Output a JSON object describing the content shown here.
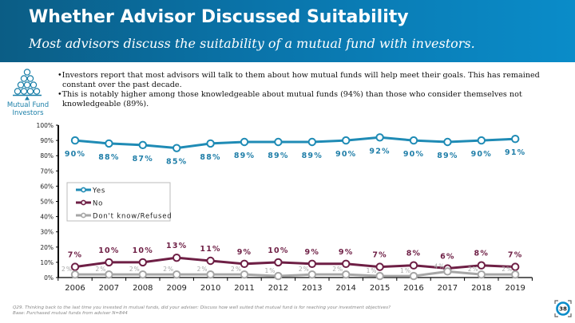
{
  "header": {
    "title": "Whether Advisor Discussed Suitability",
    "subtitle": "Most advisors discuss the suitability of a mutual fund with investors."
  },
  "logo": {
    "icon": "mutual-fund-pyramid-icon",
    "label_line1": "Mutual Fund",
    "label_line2": "Investors"
  },
  "bullets": [
    "•Investors report that most advisors will talk to them about how mutual funds will help meet their goals. This has remained constant over the past decade.",
    "•This is notably higher among those knowledgeable about mutual funds (94%) than those who consider themselves not knowledgeable (89%)."
  ],
  "footer": {
    "question": "Q29. Thinking back to the last time you invested in mutual funds, did your adviser: Discuss how well suited that mutual fund is for reaching your investment objectives?",
    "base": "Base: Purchased mutual funds from adviser N=844"
  },
  "page_number": "38",
  "chart_data": {
    "type": "line",
    "title": "",
    "xlabel": "",
    "ylabel": "",
    "ylim": [
      0,
      100
    ],
    "y_ticks": [
      "0%",
      "10%",
      "20%",
      "30%",
      "40%",
      "50%",
      "60%",
      "70%",
      "80%",
      "90%",
      "100%"
    ],
    "categories": [
      "2006",
      "2007",
      "2008",
      "2009",
      "2010",
      "2011",
      "2012",
      "2013",
      "2014",
      "2015",
      "2016",
      "2017",
      "2018",
      "2019"
    ],
    "legend_position": "center-left",
    "grid": false,
    "series": [
      {
        "name": "Yes",
        "color": "#1f8bb5",
        "label_color": "#1f7ea8",
        "values": [
          90,
          88,
          87,
          85,
          88,
          89,
          89,
          89,
          90,
          92,
          90,
          89,
          90,
          91
        ],
        "labels": [
          "90%",
          "88%",
          "87%",
          "85%",
          "88%",
          "89%",
          "89%",
          "89%",
          "90%",
          "92%",
          "90%",
          "89%",
          "90%",
          "91%"
        ]
      },
      {
        "name": "No",
        "color": "#6e1f45",
        "label_color": "#6e1f45",
        "values": [
          7,
          10,
          10,
          13,
          11,
          9,
          10,
          9,
          9,
          7,
          8,
          6,
          8,
          7
        ],
        "labels": [
          "7%",
          "10%",
          "10%",
          "13%",
          "11%",
          "9%",
          "10%",
          "9%",
          "9%",
          "7%",
          "8%",
          "6%",
          "8%",
          "7%"
        ]
      },
      {
        "name": "Don't know/Refused",
        "color": "#a6a6a6",
        "label_color": "#a6a6a6",
        "values": [
          2,
          2,
          2,
          2,
          2,
          2,
          1,
          2,
          2,
          1,
          1,
          4,
          2,
          2
        ],
        "labels": [
          "2%",
          "2%",
          "2%",
          "2%",
          "2%",
          "2%",
          "1%",
          "2%",
          "2%",
          "1%",
          "1%",
          "4%",
          "2%",
          "2%"
        ]
      }
    ]
  }
}
